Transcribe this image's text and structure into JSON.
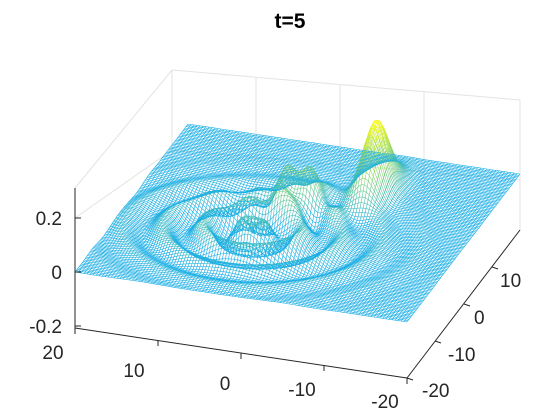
{
  "chart_data": {
    "type": "surface",
    "title": "t=5",
    "xlabel": "",
    "ylabel": "",
    "zlabel": "",
    "x_ticks": [
      "20",
      "10",
      "0",
      "-10",
      "-20"
    ],
    "y_ticks": [
      "10",
      "0",
      "-10",
      "-20"
    ],
    "z_ticks": [
      "0.2",
      "0",
      "-0.2"
    ],
    "xlim": [
      -20,
      20
    ],
    "ylim": [
      -20,
      20
    ],
    "zlim": [
      -0.2,
      0.3
    ],
    "grid": true,
    "colormap": [
      "#1aaee6",
      "#f9fb0e"
    ],
    "features": [
      {
        "x": -6,
        "y": 10,
        "z": 0.27
      },
      {
        "x": 3,
        "y": 4,
        "z": 0.14
      },
      {
        "x": 0,
        "y": 5,
        "z": 0.12
      }
    ]
  }
}
